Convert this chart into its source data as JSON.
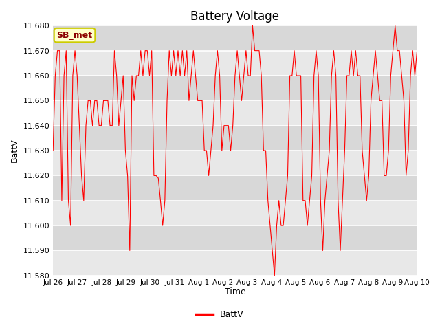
{
  "title": "Battery Voltage",
  "xlabel": "Time",
  "ylabel": "BattV",
  "ylim": [
    11.58,
    11.68
  ],
  "yticks": [
    11.58,
    11.59,
    11.6,
    11.61,
    11.62,
    11.63,
    11.64,
    11.65,
    11.66,
    11.67,
    11.68
  ],
  "xtick_labels": [
    "Jul 26",
    "Jul 27",
    "Jul 28",
    "Jul 29",
    "Jul 30",
    "Jul 31",
    "Aug 1",
    "Aug 2",
    "Aug 3",
    "Aug 4",
    "Aug 5",
    "Aug 6",
    "Aug 7",
    "Aug 8",
    "Aug 9",
    "Aug 10"
  ],
  "line_color": "#FF0000",
  "line_width": 0.8,
  "bg_band1": "#E8E8E8",
  "bg_band2": "#D8D8D8",
  "bg_outer": "#FFFFFF",
  "legend_label": "BattV",
  "annotation_text": "SB_met",
  "annotation_bg": "#FFFFCC",
  "annotation_border": "#CCCC00",
  "annotation_text_color": "#8B0000",
  "grid_color": "#FFFFFF",
  "grid_linewidth": 1.2,
  "data_y": [
    11.63,
    11.66,
    11.67,
    11.67,
    11.61,
    11.66,
    11.67,
    11.61,
    11.6,
    11.66,
    11.67,
    11.66,
    11.64,
    11.62,
    11.61,
    11.64,
    11.65,
    11.65,
    11.64,
    11.65,
    11.65,
    11.64,
    11.64,
    11.65,
    11.65,
    11.65,
    11.64,
    11.64,
    11.67,
    11.66,
    11.64,
    11.65,
    11.66,
    11.63,
    11.62,
    11.59,
    11.66,
    11.65,
    11.66,
    11.66,
    11.67,
    11.66,
    11.67,
    11.67,
    11.66,
    11.67,
    11.62,
    11.62,
    11.619,
    11.61,
    11.6,
    11.61,
    11.65,
    11.67,
    11.66,
    11.67,
    11.66,
    11.67,
    11.66,
    11.67,
    11.66,
    11.67,
    11.65,
    11.66,
    11.67,
    11.66,
    11.65,
    11.65,
    11.65,
    11.63,
    11.63,
    11.62,
    11.63,
    11.64,
    11.66,
    11.67,
    11.66,
    11.63,
    11.64,
    11.64,
    11.64,
    11.63,
    11.64,
    11.66,
    11.67,
    11.66,
    11.65,
    11.66,
    11.67,
    11.66,
    11.66,
    11.68,
    11.67,
    11.67,
    11.67,
    11.66,
    11.63,
    11.63,
    11.61,
    11.6,
    11.59,
    11.58,
    11.6,
    11.61,
    11.6,
    11.6,
    11.61,
    11.62,
    11.66,
    11.66,
    11.67,
    11.66,
    11.66,
    11.66,
    11.61,
    11.61,
    11.6,
    11.61,
    11.62,
    11.66,
    11.67,
    11.66,
    11.61,
    11.59,
    11.61,
    11.62,
    11.63,
    11.66,
    11.67,
    11.66,
    11.61,
    11.59,
    11.61,
    11.63,
    11.66,
    11.66,
    11.67,
    11.66,
    11.67,
    11.66,
    11.66,
    11.63,
    11.62,
    11.61,
    11.62,
    11.65,
    11.66,
    11.67,
    11.66,
    11.65,
    11.65,
    11.62,
    11.62,
    11.63,
    11.66,
    11.67,
    11.68,
    11.67,
    11.67,
    11.66,
    11.65,
    11.62,
    11.63,
    11.66,
    11.67,
    11.66,
    11.67
  ]
}
